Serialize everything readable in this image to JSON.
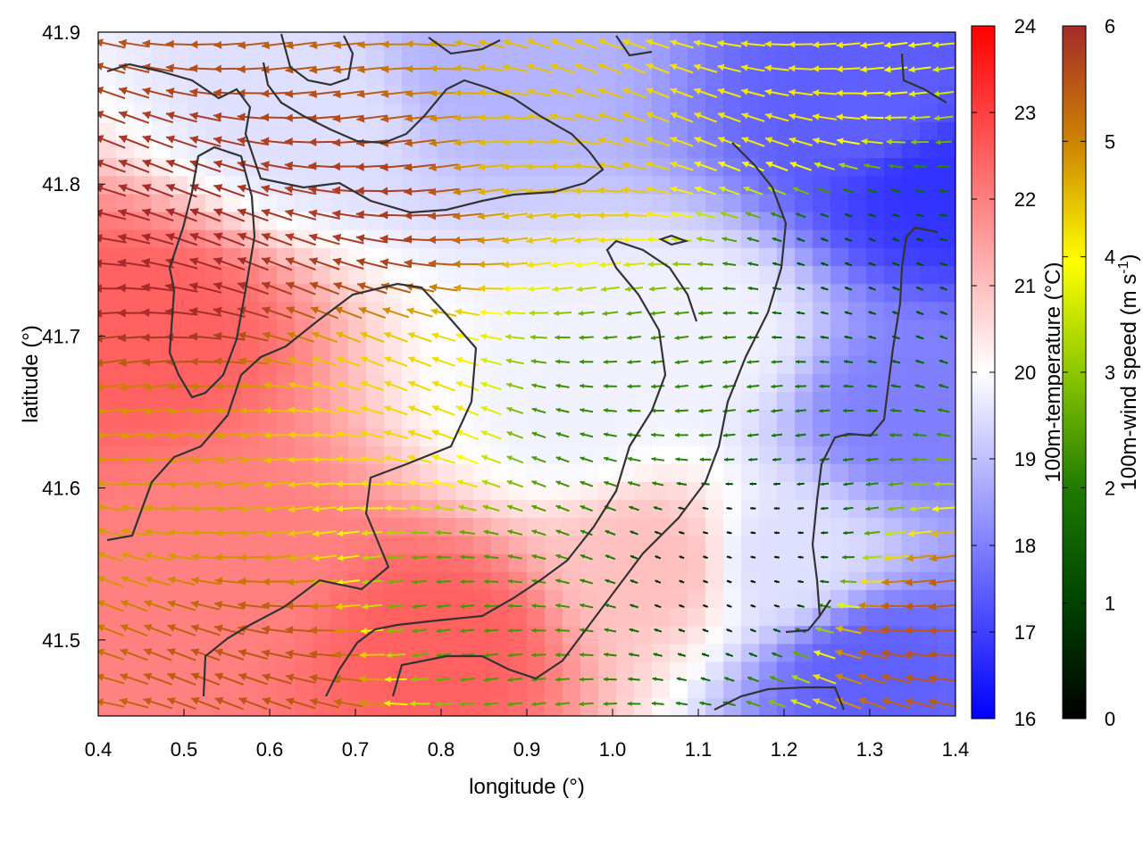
{
  "chart_data": {
    "type": "heatmap",
    "title": "",
    "xlabel": "longitude (°)",
    "ylabel": "latitude (°)",
    "xlim": [
      0.4,
      1.4
    ],
    "ylim": [
      41.45,
      41.9
    ],
    "xticks": [
      "0.4",
      "0.5",
      "0.6",
      "0.7",
      "0.8",
      "0.9",
      "1.0",
      "1.1",
      "1.2",
      "1.3",
      "1.4"
    ],
    "yticks": [
      "41.5",
      "41.6",
      "41.7",
      "41.8",
      "41.9"
    ],
    "grid": false,
    "temperature": {
      "label": "100m-temperature (°C)",
      "range": [
        16,
        24
      ],
      "ticks": [
        "16",
        "17",
        "18",
        "19",
        "20",
        "21",
        "22",
        "23",
        "24"
      ],
      "colors": [
        "#0000ff",
        "#ffffff",
        "#ff0000"
      ]
    },
    "wind_speed": {
      "label_main": "100m-wind speed (m s",
      "label_sup": "-1",
      "label_close": ")",
      "range": [
        0,
        6
      ],
      "ticks": [
        "0",
        "1",
        "2",
        "3",
        "4",
        "5",
        "6"
      ],
      "colors": [
        "#000000",
        "#006400",
        "#2e8b00",
        "#9acd00",
        "#ffff00",
        "#cd8500",
        "#a52a2a"
      ]
    },
    "field": {
      "description_levels": "wind speed and temperature are shown as a gridded vector field with a terrain contour overlay",
      "temperature_samples": [
        {
          "lon": 0.45,
          "lat": 41.7,
          "value": 22.5
        },
        {
          "lon": 0.55,
          "lat": 41.55,
          "value": 22.0
        },
        {
          "lon": 0.8,
          "lat": 41.5,
          "value": 22.5
        },
        {
          "lon": 0.65,
          "lat": 41.85,
          "value": 19.5
        },
        {
          "lon": 0.85,
          "lat": 41.88,
          "value": 18.8
        },
        {
          "lon": 1.3,
          "lat": 41.85,
          "value": 17.5
        },
        {
          "lon": 1.38,
          "lat": 41.8,
          "value": 16.8
        },
        {
          "lon": 1.1,
          "lat": 41.7,
          "value": 19.8
        },
        {
          "lon": 1.05,
          "lat": 41.55,
          "value": 21.0
        },
        {
          "lon": 1.2,
          "lat": 41.55,
          "value": 19.5
        },
        {
          "lon": 1.3,
          "lat": 41.48,
          "value": 17.5
        },
        {
          "lon": 1.35,
          "lat": 41.65,
          "value": 18.0
        },
        {
          "lon": 0.95,
          "lat": 41.65,
          "value": 19.8
        }
      ],
      "wind_speed_samples": [
        {
          "lon": 0.5,
          "lat": 41.75,
          "value": 6.0
        },
        {
          "lon": 0.7,
          "lat": 41.78,
          "value": 5.8
        },
        {
          "lon": 0.45,
          "lat": 41.6,
          "value": 4.8
        },
        {
          "lon": 0.75,
          "lat": 41.65,
          "value": 4.3
        },
        {
          "lon": 0.95,
          "lat": 41.82,
          "value": 4.5
        },
        {
          "lon": 1.2,
          "lat": 41.85,
          "value": 4.2
        },
        {
          "lon": 1.0,
          "lat": 41.65,
          "value": 2.0
        },
        {
          "lon": 1.15,
          "lat": 41.55,
          "value": 0.3
        },
        {
          "lon": 1.3,
          "lat": 41.75,
          "value": 0.8
        },
        {
          "lon": 0.6,
          "lat": 41.48,
          "value": 5.5
        },
        {
          "lon": 1.38,
          "lat": 41.5,
          "value": 5.5
        },
        {
          "lon": 0.85,
          "lat": 41.52,
          "value": 2.2
        }
      ]
    }
  }
}
